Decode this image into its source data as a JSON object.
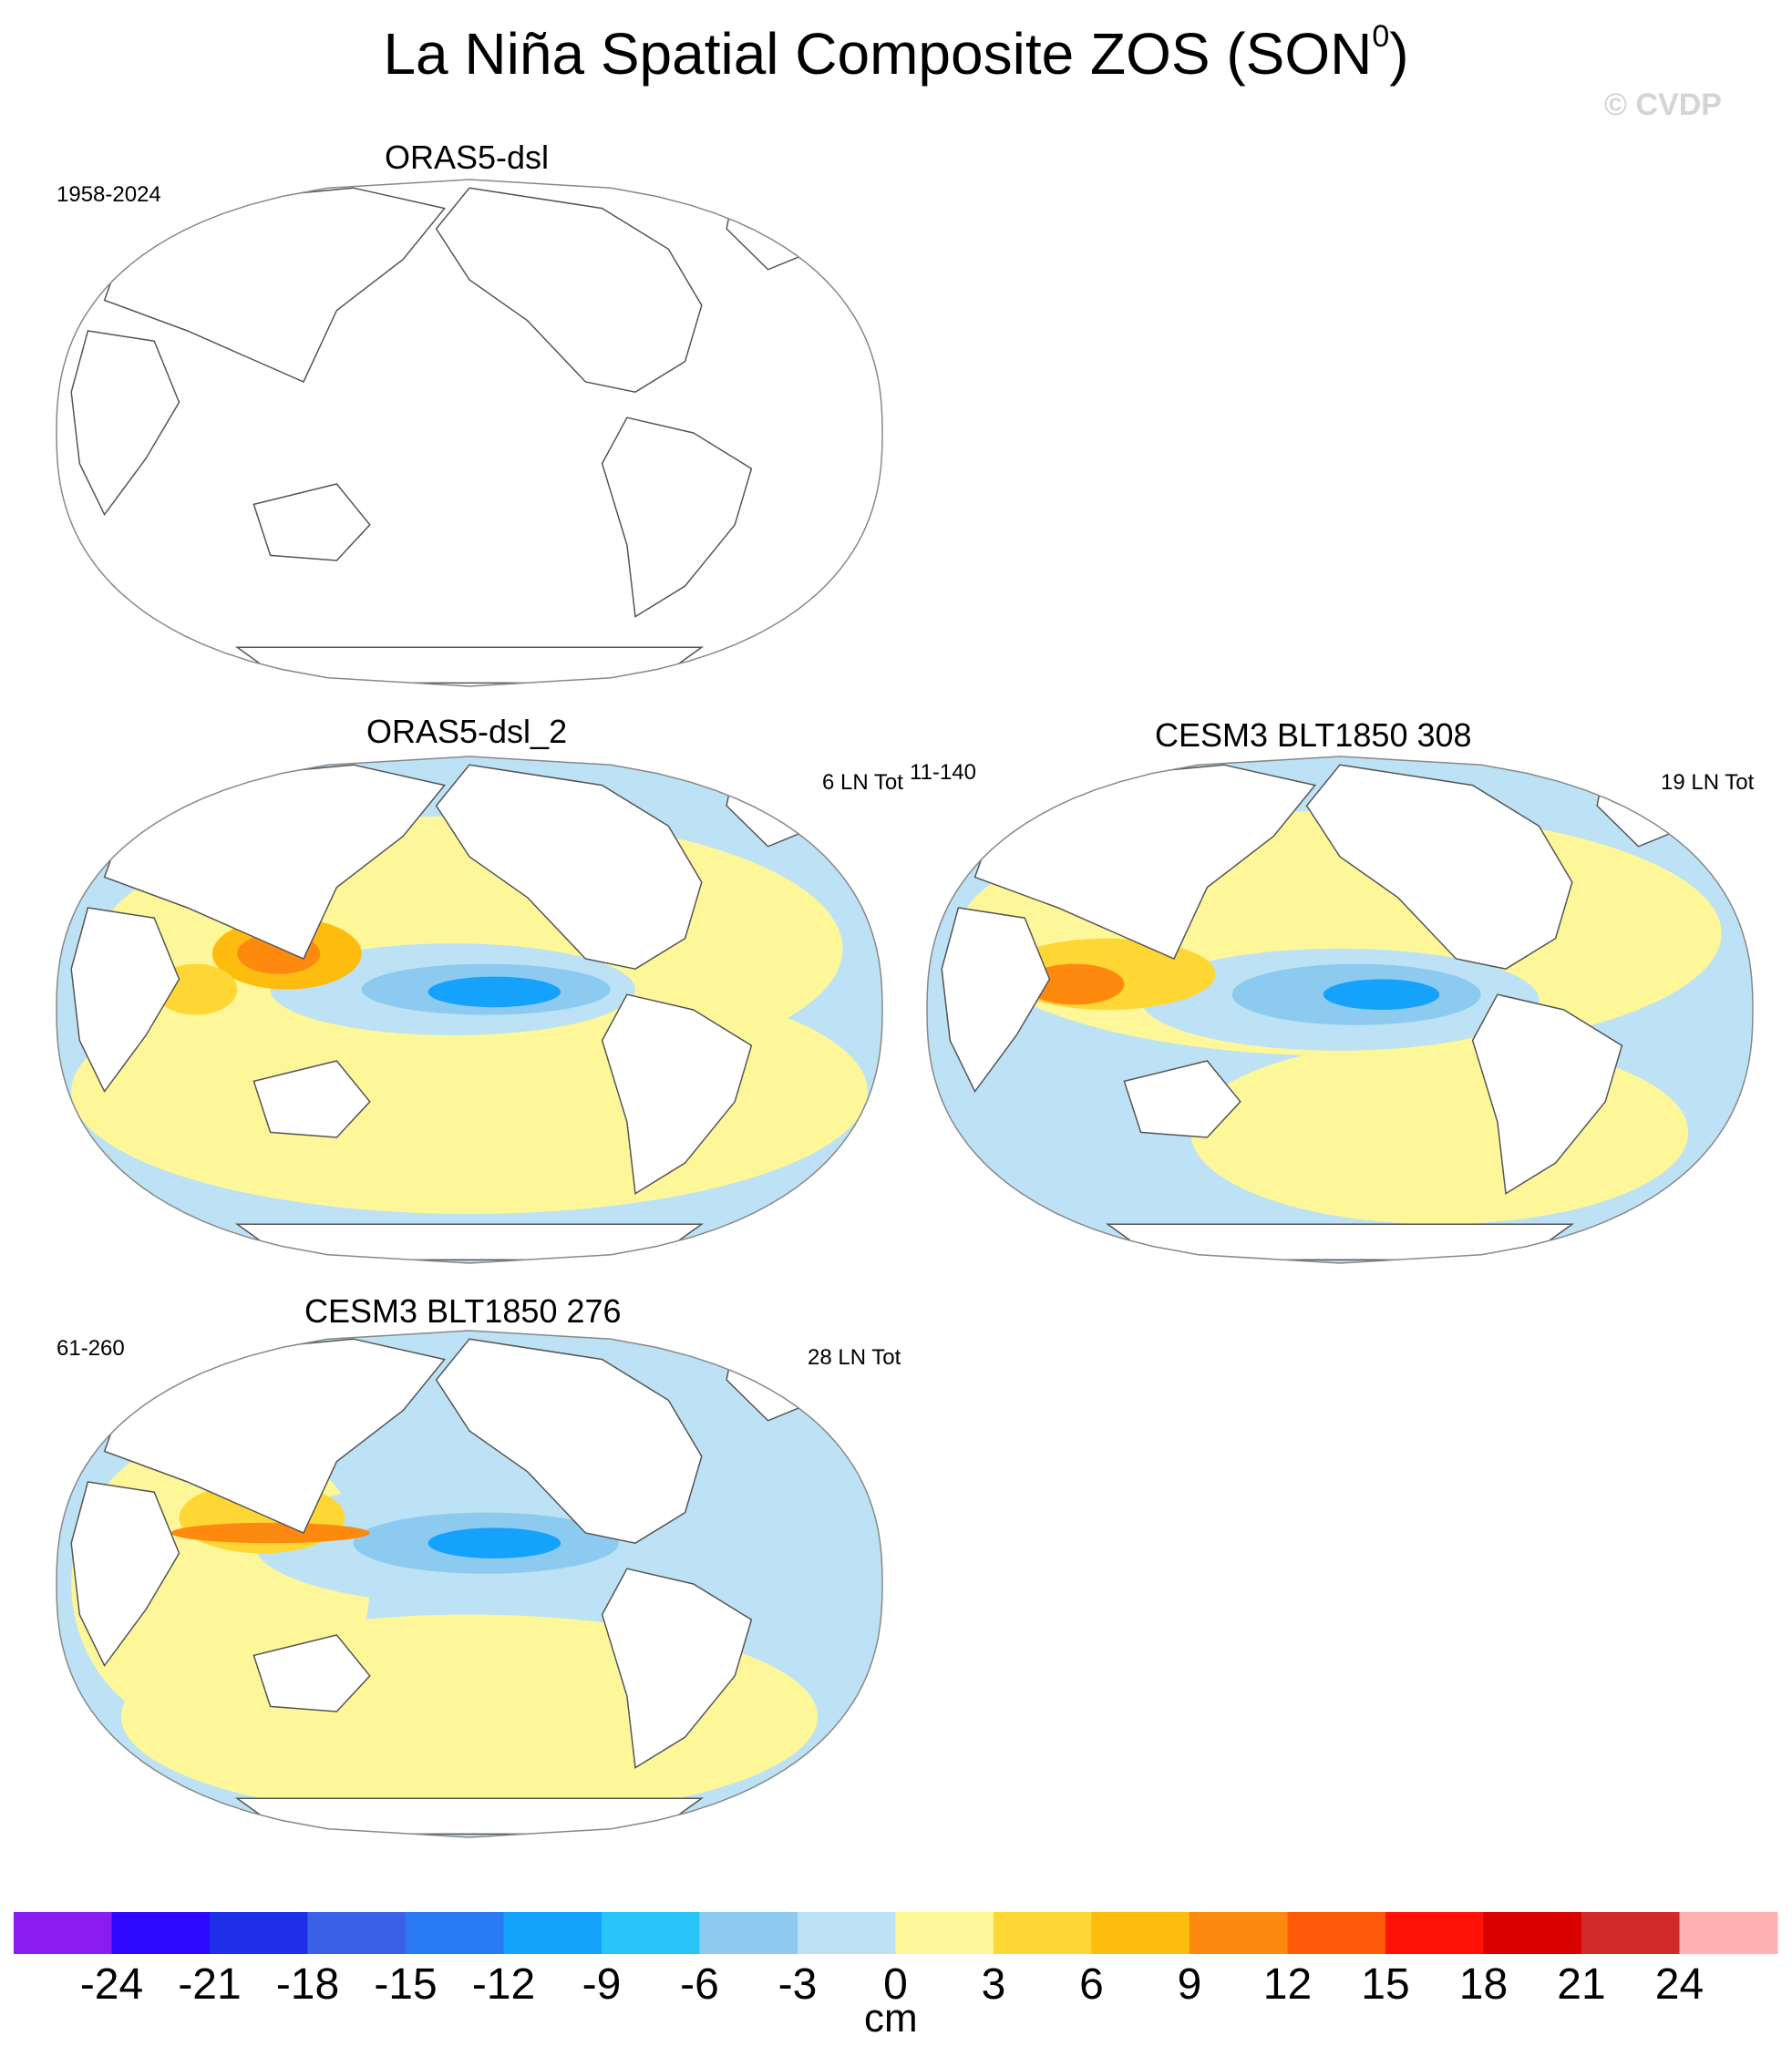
{
  "title": {
    "main": "La Niña Spatial Composite ZOS (SON",
    "sup": "0",
    "close": ")"
  },
  "watermark": "© CVDP",
  "panels": [
    {
      "title": "ORAS5-dsl",
      "left_label": "1958-2024",
      "right_label": "",
      "state": "empty"
    },
    {
      "title": "ORAS5-dsl_2",
      "left_label": "",
      "right_label": "6 LN Tot",
      "state": "filled"
    },
    {
      "title": "CESM3 BLT1850 308",
      "left_label": "11-140",
      "right_label": "19 LN Tot",
      "state": "filled"
    },
    {
      "title": "CESM3 BLT1850 276",
      "left_label": "61-260",
      "right_label": "28 LN Tot",
      "state": "filled"
    }
  ],
  "chart_data": {
    "type": "heatmap",
    "title": "La Niña Spatial Composite ZOS (SON0)",
    "projection": "Robinson (Pacific-centred)",
    "variable": "ZOS",
    "season": "SON0",
    "colorbar": {
      "unit": "cm",
      "ticks": [
        -24,
        -21,
        -18,
        -15,
        -12,
        -9,
        -6,
        -3,
        0,
        3,
        6,
        9,
        12,
        15,
        18,
        21,
        24
      ],
      "colors": [
        "#8a1cf2",
        "#2e08ff",
        "#1f2ee8",
        "#3b62e6",
        "#2a7af5",
        "#14a2fc",
        "#26c4f7",
        "#8ccbef",
        "#bde2f5",
        "#fef79a",
        "#fed734",
        "#febc0e",
        "#fd8a0e",
        "#fe5a08",
        "#fe1208",
        "#d90000",
        "#d22a2a",
        "#ffb0b0"
      ]
    },
    "panels": [
      {
        "name": "ORAS5-dsl",
        "years": "1958-2024",
        "events": "",
        "data": "no data shown (coastlines only)"
      },
      {
        "name": "ORAS5-dsl_2",
        "years": "",
        "events": "6 LN Tot",
        "min_approx": -12,
        "max_approx": 12
      },
      {
        "name": "CESM3 BLT1850 308",
        "years": "11-140",
        "events": "19 LN Tot",
        "min_approx": -12,
        "max_approx": 9
      },
      {
        "name": "CESM3 BLT1850 276",
        "years": "61-260",
        "events": "28 LN Tot",
        "min_approx": -12,
        "max_approx": 12
      }
    ]
  }
}
